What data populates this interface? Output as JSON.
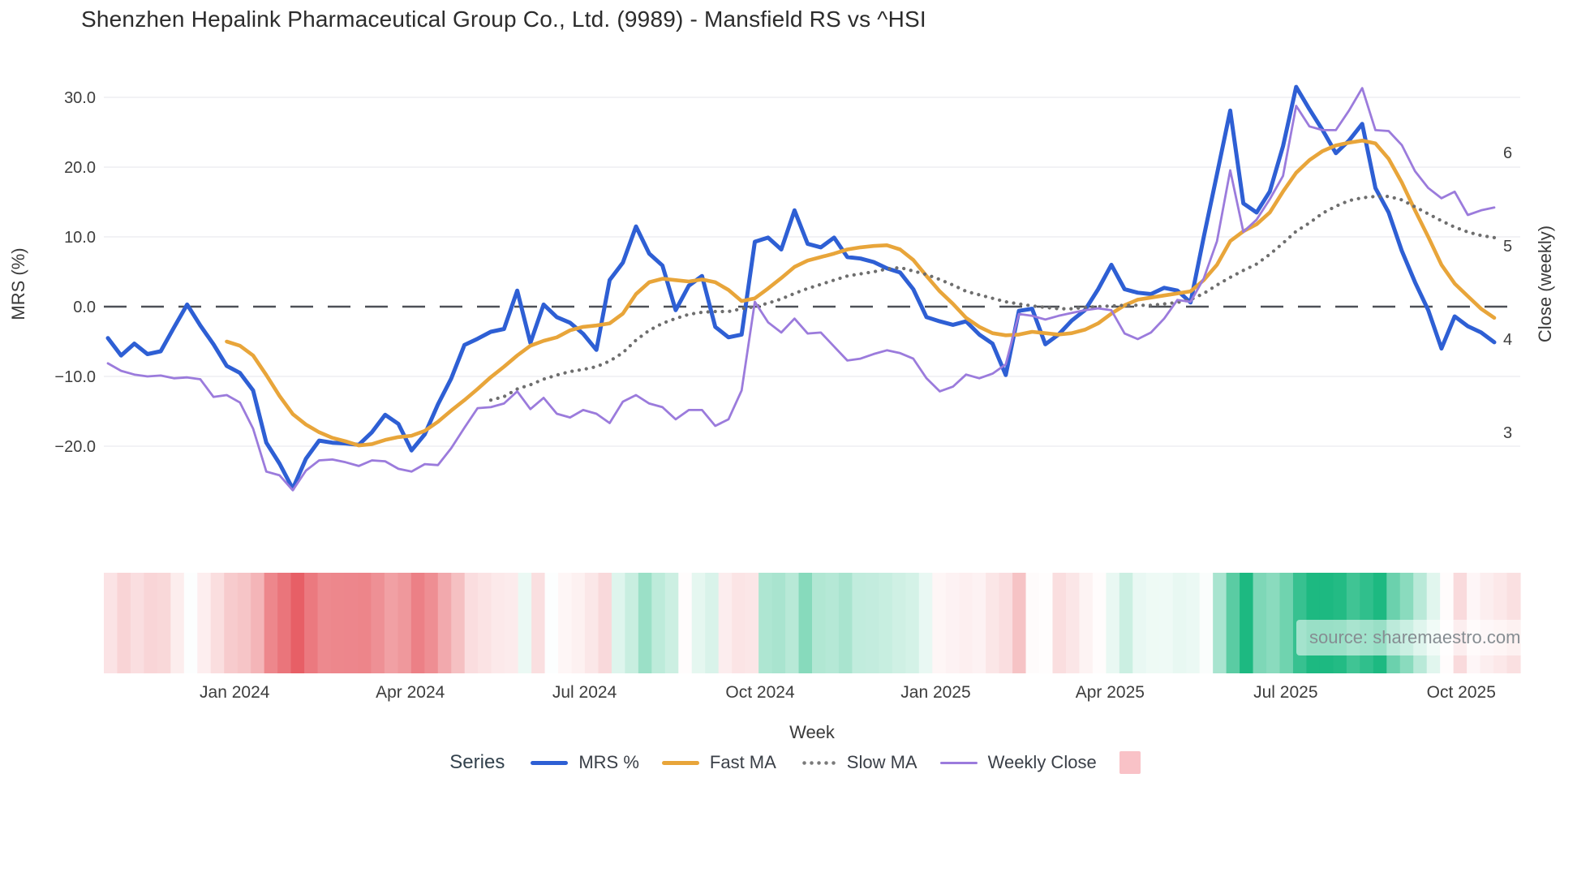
{
  "title": "Shenzhen Hepalink Pharmaceutical Group Co., Ltd. (9989) - Mansfield RS vs ^HSI",
  "source_text": "source: sharemaestro.com",
  "legend": {
    "title": "Series",
    "items": [
      {
        "label": "MRS %",
        "swatch": "line",
        "color": "#2e5fd4"
      },
      {
        "label": "Fast MA",
        "swatch": "line",
        "color": "#e8a53a"
      },
      {
        "label": "Slow MA",
        "swatch": "dots",
        "color": "#7a7a7a"
      },
      {
        "label": "Weekly Close",
        "swatch": "thin",
        "color": "#9b7bdc"
      },
      {
        "label": "",
        "swatch": "square",
        "color": "#f9c2c7"
      }
    ]
  },
  "colors": {
    "mrs_blue": "#2e5fd4",
    "fast_ma_orange": "#e8a53a",
    "slow_ma_gray": "#6e6e6e",
    "close_purple": "#9b7bdc",
    "zero_line": "#4d5057",
    "gridline": "#ededf2",
    "tick_text": "#3d3d3d",
    "heat_positive": "#1db981",
    "heat_negative": "#e75f66"
  },
  "chart_data": {
    "type": "line",
    "x_unit": "week",
    "n_weeks": 106,
    "grid": "on",
    "legend_position": "bottom-center",
    "xlabel": "Week",
    "left_axis": {
      "title": "MRS (%)",
      "ticks": [
        {
          "v": 30,
          "label": "30.0"
        },
        {
          "v": 20,
          "label": "20.0"
        },
        {
          "v": 10,
          "label": "10.0"
        },
        {
          "v": 0,
          "label": "0.0"
        },
        {
          "v": -10,
          "label": "−10.0"
        },
        {
          "v": -20,
          "label": "−20.0"
        }
      ],
      "ylim": [
        -30,
        34
      ],
      "zero_line_dashed": true
    },
    "right_axis": {
      "title": "Close (weekly)",
      "ticks": [
        {
          "v": 6,
          "label": "6"
        },
        {
          "v": 5,
          "label": "5"
        },
        {
          "v": 4,
          "label": "4"
        },
        {
          "v": 3,
          "label": "3"
        }
      ],
      "ylim": [
        1.7,
        6.95
      ]
    },
    "x_ticks": [
      {
        "label": "Jan 2024",
        "week_index": 9.6
      },
      {
        "label": "Apr 2024",
        "week_index": 22.9
      },
      {
        "label": "Jul 2024",
        "week_index": 36.1
      },
      {
        "label": "Oct 2024",
        "week_index": 49.4
      },
      {
        "label": "Jan 2025",
        "week_index": 62.7
      },
      {
        "label": "Apr 2025",
        "week_index": 75.9
      },
      {
        "label": "Jul 2025",
        "week_index": 89.2
      },
      {
        "label": "Oct 2025",
        "week_index": 102.5
      }
    ],
    "series": [
      {
        "name": "MRS %",
        "axis": "left",
        "color": "#2e5fd4",
        "style": "solid",
        "width": 5,
        "values": [
          -4.5,
          -7.0,
          -5.3,
          -6.8,
          -6.4,
          -3.0,
          0.3,
          -2.7,
          -5.4,
          -8.5,
          -9.5,
          -12.0,
          -19.5,
          -22.5,
          -26.1,
          -21.8,
          -19.2,
          -19.5,
          -19.6,
          -19.8,
          -18.0,
          -15.5,
          -16.8,
          -20.6,
          -18.3,
          -14.0,
          -10.3,
          -5.5,
          -4.6,
          -3.6,
          -3.2,
          2.3,
          -5.2,
          0.3,
          -1.5,
          -2.3,
          -3.9,
          -6.2,
          3.8,
          6.3,
          11.5,
          7.6,
          5.9,
          -0.5,
          3.0,
          4.4,
          -2.9,
          -4.4,
          -4.0,
          9.3,
          9.9,
          8.2,
          13.8,
          9.0,
          8.5,
          9.9,
          7.1,
          6.9,
          6.4,
          5.5,
          4.9,
          2.5,
          -1.5,
          -2.1,
          -2.6,
          -2.1,
          -4.0,
          -5.3,
          -9.8,
          -0.6,
          -0.3,
          -5.4,
          -4.0,
          -2.0,
          -0.5,
          2.5,
          6.0,
          2.5,
          2.0,
          1.8,
          2.7,
          2.3,
          0.6,
          10.0,
          19.0,
          28.1,
          14.8,
          13.5,
          16.5,
          23.0,
          31.5,
          28.3,
          25.3,
          22.0,
          23.8,
          26.2,
          17.0,
          13.5,
          8.0,
          3.5,
          -0.5,
          -6.0,
          -1.4,
          -2.8,
          -3.7,
          -5.1
        ]
      },
      {
        "name": "Fast MA",
        "axis": "left",
        "color": "#e8a53a",
        "style": "solid",
        "width": 4.6,
        "values": [
          null,
          null,
          null,
          null,
          null,
          null,
          null,
          null,
          null,
          -5.0,
          -5.6,
          -7.0,
          -9.8,
          -12.8,
          -15.4,
          -16.9,
          -18.0,
          -18.8,
          -19.3,
          -19.9,
          -19.7,
          -19.1,
          -18.7,
          -18.5,
          -17.8,
          -16.5,
          -14.9,
          -13.4,
          -11.8,
          -10.1,
          -8.6,
          -7.0,
          -5.6,
          -4.9,
          -4.4,
          -3.4,
          -2.9,
          -2.7,
          -2.4,
          -1.0,
          1.8,
          3.5,
          4.0,
          3.8,
          3.6,
          3.9,
          3.5,
          2.4,
          0.8,
          1.2,
          2.6,
          4.1,
          5.7,
          6.6,
          7.1,
          7.6,
          8.2,
          8.5,
          8.7,
          8.8,
          8.2,
          6.7,
          4.4,
          2.2,
          0.4,
          -1.6,
          -2.9,
          -3.8,
          -4.1,
          -4.0,
          -3.6,
          -3.8,
          -4.0,
          -3.8,
          -3.3,
          -2.4,
          -1.0,
          0.2,
          1.0,
          1.3,
          1.6,
          1.9,
          2.2,
          3.8,
          6.0,
          9.4,
          10.8,
          11.8,
          13.5,
          16.5,
          19.2,
          21.0,
          22.3,
          23.1,
          23.5,
          23.8,
          23.4,
          21.2,
          17.8,
          13.8,
          10.0,
          6.0,
          3.3,
          1.5,
          -0.3,
          -1.6
        ]
      },
      {
        "name": "Slow MA",
        "axis": "left",
        "color": "#6e6e6e",
        "style": "dotted",
        "width": 4.2,
        "values": [
          null,
          null,
          null,
          null,
          null,
          null,
          null,
          null,
          null,
          null,
          null,
          null,
          null,
          null,
          null,
          null,
          null,
          null,
          null,
          null,
          null,
          null,
          null,
          null,
          null,
          null,
          null,
          null,
          null,
          -13.4,
          -12.9,
          -11.8,
          -11.2,
          -10.4,
          -9.8,
          -9.3,
          -9.0,
          -8.6,
          -7.8,
          -6.6,
          -4.8,
          -3.4,
          -2.4,
          -1.7,
          -1.1,
          -0.8,
          -0.7,
          -0.7,
          -0.3,
          0.0,
          0.5,
          1.1,
          1.9,
          2.6,
          3.2,
          3.8,
          4.4,
          4.7,
          5.0,
          5.4,
          5.6,
          5.1,
          4.6,
          3.9,
          3.1,
          2.2,
          1.7,
          1.2,
          0.7,
          0.4,
          0.1,
          -0.1,
          -0.3,
          -0.3,
          -0.1,
          0.0,
          0.1,
          0.2,
          0.2,
          0.2,
          0.4,
          0.6,
          1.0,
          1.9,
          3.1,
          4.2,
          5.2,
          6.1,
          7.5,
          9.1,
          10.8,
          12.0,
          13.4,
          14.4,
          15.2,
          15.6,
          15.8,
          15.8,
          15.3,
          14.3,
          13.3,
          12.3,
          11.4,
          10.7,
          10.2,
          9.9
        ]
      },
      {
        "name": "Weekly Close",
        "axis": "right",
        "color": "#9b7bdc",
        "style": "solid",
        "width": 2.8,
        "values": [
          3.74,
          3.66,
          3.62,
          3.6,
          3.61,
          3.58,
          3.59,
          3.57,
          3.38,
          3.4,
          3.32,
          3.04,
          2.58,
          2.54,
          2.38,
          2.59,
          2.7,
          2.71,
          2.68,
          2.64,
          2.7,
          2.69,
          2.61,
          2.58,
          2.66,
          2.65,
          2.83,
          3.05,
          3.26,
          3.27,
          3.31,
          3.44,
          3.25,
          3.37,
          3.2,
          3.16,
          3.24,
          3.2,
          3.1,
          3.33,
          3.4,
          3.31,
          3.27,
          3.14,
          3.24,
          3.24,
          3.07,
          3.14,
          3.45,
          4.4,
          4.18,
          4.07,
          4.22,
          4.06,
          4.07,
          3.92,
          3.77,
          3.79,
          3.84,
          3.88,
          3.85,
          3.79,
          3.58,
          3.44,
          3.49,
          3.62,
          3.58,
          3.63,
          3.73,
          4.27,
          4.25,
          4.21,
          4.25,
          4.28,
          4.31,
          4.33,
          4.31,
          4.06,
          4.0,
          4.07,
          4.22,
          4.42,
          4.4,
          4.65,
          5.05,
          5.81,
          5.15,
          5.28,
          5.5,
          5.75,
          6.5,
          6.28,
          6.24,
          6.24,
          6.45,
          6.69,
          6.24,
          6.23,
          6.08,
          5.8,
          5.62,
          5.51,
          5.58,
          5.33,
          5.38,
          5.41
        ]
      }
    ],
    "heatmap": {
      "description": "weekly strip colored from MRS % values, red negative to green positive",
      "source_series": "MRS %",
      "negative_color": "#e75f66",
      "positive_color": "#1db981",
      "max_abs": 26
    }
  }
}
